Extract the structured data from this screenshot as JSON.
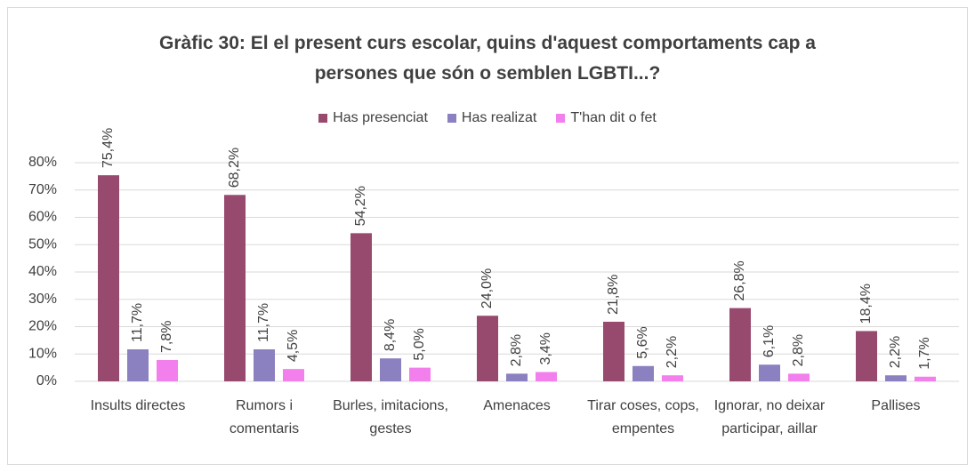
{
  "chart_data": {
    "type": "bar",
    "title": "Gràfic 30: El el present curs escolar, quins d'aquest comportaments cap a persones que són o semblen LGBTI...?",
    "categories": [
      "Insults directes",
      "Rumors i comentaris",
      "Burles, imitacions, gestes",
      "Amenaces",
      "Tirar coses, cops, empentes",
      "Ignorar, no deixar participar, aillar",
      "Pallises"
    ],
    "series": [
      {
        "name": "Has presenciat",
        "color": "#984a6e",
        "values": [
          75.4,
          68.2,
          54.2,
          24.0,
          21.8,
          26.8,
          18.4
        ],
        "value_labels": [
          "75,4%",
          "68,2%",
          "54,2%",
          "24,0%",
          "21,8%",
          "26,8%",
          "18,4%"
        ]
      },
      {
        "name": "Has realizat",
        "color": "#8b80c0",
        "values": [
          11.7,
          11.7,
          8.4,
          2.8,
          5.6,
          6.1,
          2.2
        ],
        "value_labels": [
          "11,7%",
          "11,7%",
          "8,4%",
          "2,8%",
          "5,6%",
          "6,1%",
          "2,2%"
        ]
      },
      {
        "name": "T'han dit o fet",
        "color": "#f27fec",
        "values": [
          7.8,
          4.5,
          5.0,
          3.4,
          2.2,
          2.8,
          1.7
        ],
        "value_labels": [
          "7,8%",
          "4,5%",
          "5,0%",
          "3,4%",
          "2,2%",
          "2,8%",
          "1,7%"
        ]
      }
    ],
    "ylim": [
      0,
      80
    ],
    "yticks": [
      {
        "value": 0,
        "label": "0%"
      },
      {
        "value": 10,
        "label": "10%"
      },
      {
        "value": 20,
        "label": "20%"
      },
      {
        "value": 30,
        "label": "30%"
      },
      {
        "value": 40,
        "label": "40%"
      },
      {
        "value": 50,
        "label": "50%"
      },
      {
        "value": 60,
        "label": "60%"
      },
      {
        "value": 70,
        "label": "70%"
      },
      {
        "value": 80,
        "label": "80%"
      }
    ],
    "grid": true,
    "legend": "top"
  }
}
